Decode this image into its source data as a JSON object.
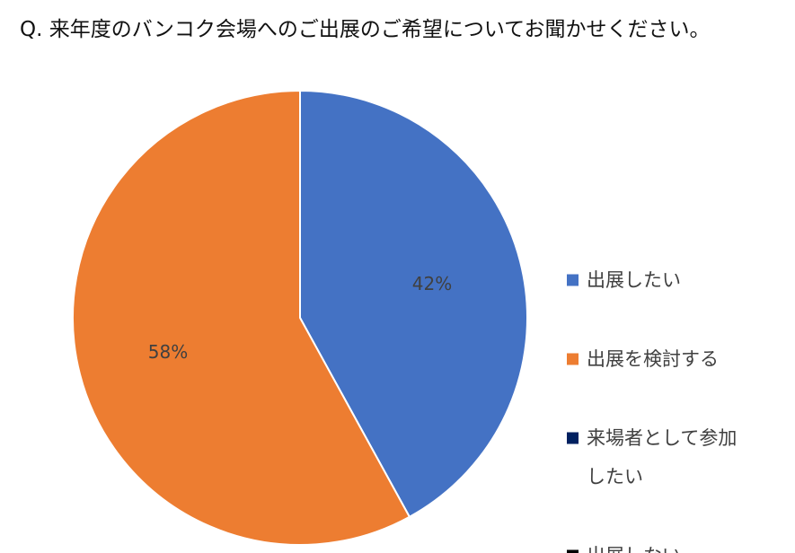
{
  "chart_data": {
    "type": "pie",
    "title": "Q. 来年度のバンコク会場へのご出展のご希望についてお聞かせください。",
    "categories": [
      "出展したい",
      "出展を検討する",
      "来場者として参加したい",
      "出展しない"
    ],
    "values": [
      42,
      58,
      0,
      0
    ],
    "value_labels": [
      "42%",
      "58%",
      "",
      ""
    ],
    "legend_lines": [
      [
        "出展したい"
      ],
      [
        "出展を検討する"
      ],
      [
        "来場者として参加",
        "したい"
      ],
      [
        "出展しない"
      ]
    ],
    "colors": [
      "#4472C4",
      "#ED7D31",
      "#002060",
      "#000000"
    ],
    "legend_position": "right",
    "start_angle": "12 o'clock",
    "direction": "clockwise"
  }
}
